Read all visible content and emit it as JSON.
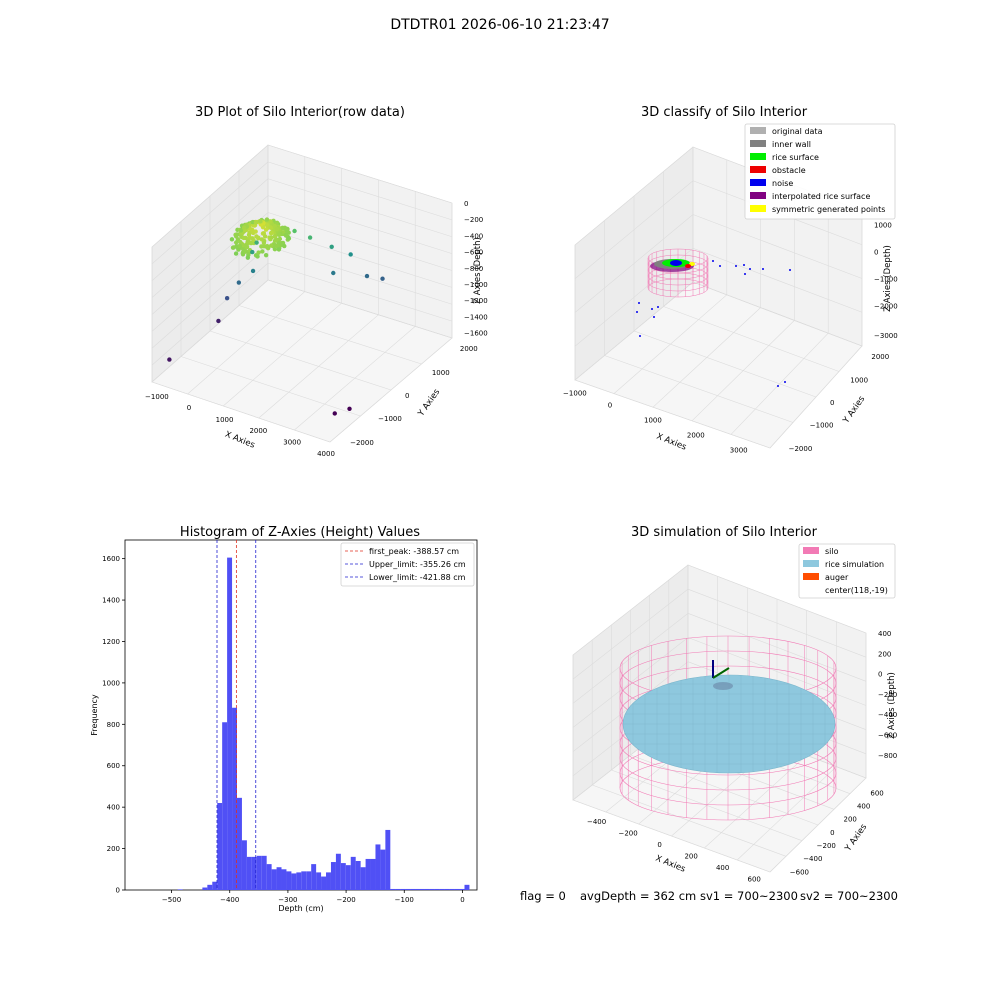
{
  "figure": {
    "title": "DTDTR01 2026-06-10 21:23:47",
    "status": {
      "flag": "flag = 0",
      "avg_depth": "avgDepth = 362 cm",
      "sv1": "sv1 = 700~2300",
      "sv2": "sv2 = 700~2300"
    }
  },
  "colors": {
    "hist_bar": "#5050f5",
    "peak_line": "#e03020",
    "limit_line": "#2020d0",
    "silo_wire": "#f27ab5",
    "rice_fill": "#8ec8de",
    "auger": "#ff4d00",
    "original": "#b0b0b0",
    "inner_wall": "#808080",
    "rice_surface": "#00ee00",
    "obstacle": "#ee0000",
    "noise": "#0000ee",
    "interpolated": "#800080",
    "symmetric": "#ffff00"
  },
  "chart_data": [
    {
      "type": "scatter3d",
      "title": "3D Plot of Silo Interior(row data)",
      "xlabel": "X Axies",
      "ylabel": "Y Axies",
      "zlabel": "Z Axies (Depth)",
      "x_ticks": [
        "−1000",
        "0",
        "1000",
        "2000",
        "3000",
        "4000"
      ],
      "y_ticks": [
        "−2000",
        "−1000",
        "0",
        "1000",
        "2000"
      ],
      "z_ticks": [
        "0",
        "−200",
        "−400",
        "−600",
        "−800",
        "−1000",
        "−1200",
        "−1400",
        "−1600"
      ],
      "points": [
        {
          "x": 150,
          "y": 150,
          "z": -350,
          "n": 220
        },
        {
          "x": -300,
          "y": 600,
          "z": -600
        },
        {
          "x": -350,
          "y": 500,
          "z": -700
        },
        {
          "x": -250,
          "y": 400,
          "z": -900
        },
        {
          "x": -550,
          "y": 250,
          "z": -1050
        },
        {
          "x": -700,
          "y": 0,
          "z": -1200
        },
        {
          "x": -800,
          "y": -200,
          "z": -1450
        },
        {
          "x": 500,
          "y": 1000,
          "z": -450
        },
        {
          "x": 800,
          "y": 1200,
          "z": -550
        },
        {
          "x": 1200,
          "y": 1500,
          "z": -700
        },
        {
          "x": 1600,
          "y": 1700,
          "z": -800
        },
        {
          "x": 1400,
          "y": 1300,
          "z": -950
        },
        {
          "x": 2000,
          "y": 1800,
          "z": -1050
        },
        {
          "x": 2300,
          "y": 2000,
          "z": -1100
        },
        {
          "x": -1000,
          "y": -1800,
          "z": -1500
        },
        {
          "x": 3600,
          "y": -1500,
          "z": -1600
        },
        {
          "x": 3800,
          "y": -1200,
          "z": -1600
        }
      ]
    },
    {
      "type": "scatter3d",
      "title": "3D classify of Silo Interior",
      "xlabel": "X Axies",
      "ylabel": "Y Axies",
      "zlabel": "Z Axies (Depth)",
      "x_ticks": [
        "−1000",
        "0",
        "1000",
        "2000",
        "3000"
      ],
      "y_ticks": [
        "−2000",
        "−1000",
        "0",
        "1000",
        "2000"
      ],
      "z_ticks": [
        "1000",
        "0",
        "−1000",
        "−2000",
        "−3000"
      ],
      "legend": [
        {
          "label": "original data",
          "color": "#b0b0b0"
        },
        {
          "label": "inner wall",
          "color": "#808080"
        },
        {
          "label": "rice surface",
          "color": "#00ee00"
        },
        {
          "label": "obstacle",
          "color": "#ee0000"
        },
        {
          "label": "noise",
          "color": "#0000ee"
        },
        {
          "label": "interpolated rice surface",
          "color": "#800080"
        },
        {
          "label": "symmetric generated points",
          "color": "#ffff00"
        }
      ]
    },
    {
      "type": "bar",
      "title": "Histogram of Z-Axies (Height) Values",
      "xlabel": "Depth (cm)",
      "ylabel": "Frequency",
      "xlim": [
        -580,
        25
      ],
      "ylim": [
        0,
        1690
      ],
      "x_ticks": [
        -500,
        -400,
        -300,
        -200,
        -100,
        0
      ],
      "y_ticks": [
        0,
        200,
        400,
        600,
        800,
        1000,
        1200,
        1400,
        1600
      ],
      "bin_width": 8.5,
      "bins": [
        {
          "x": -489.5,
          "value": 3
        },
        {
          "x": -447,
          "value": 12
        },
        {
          "x": -438.5,
          "value": 25
        },
        {
          "x": -430,
          "value": 40
        },
        {
          "x": -421.5,
          "value": 420
        },
        {
          "x": -413,
          "value": 810
        },
        {
          "x": -404.5,
          "value": 1605
        },
        {
          "x": -396,
          "value": 880
        },
        {
          "x": -387.5,
          "value": 445
        },
        {
          "x": -379,
          "value": 240
        },
        {
          "x": -370.5,
          "value": 160
        },
        {
          "x": -362,
          "value": 160
        },
        {
          "x": -353.5,
          "value": 165
        },
        {
          "x": -345,
          "value": 165
        },
        {
          "x": -336.5,
          "value": 125
        },
        {
          "x": -328,
          "value": 100
        },
        {
          "x": -319.5,
          "value": 110
        },
        {
          "x": -311,
          "value": 100
        },
        {
          "x": -302.5,
          "value": 90
        },
        {
          "x": -294,
          "value": 80
        },
        {
          "x": -285.5,
          "value": 85
        },
        {
          "x": -277,
          "value": 90
        },
        {
          "x": -268.5,
          "value": 90
        },
        {
          "x": -260,
          "value": 125
        },
        {
          "x": -251.5,
          "value": 85
        },
        {
          "x": -243,
          "value": 65
        },
        {
          "x": -234.5,
          "value": 85
        },
        {
          "x": -226,
          "value": 135
        },
        {
          "x": -217.5,
          "value": 175
        },
        {
          "x": -209,
          "value": 130
        },
        {
          "x": -200.5,
          "value": 120
        },
        {
          "x": -192,
          "value": 160
        },
        {
          "x": -183.5,
          "value": 140
        },
        {
          "x": -175,
          "value": 110
        },
        {
          "x": -166.5,
          "value": 150
        },
        {
          "x": -158,
          "value": 150
        },
        {
          "x": -149.5,
          "value": 220
        },
        {
          "x": -141,
          "value": 195
        },
        {
          "x": -132.5,
          "value": 290
        },
        {
          "x": -124,
          "value": 5
        },
        {
          "x": -115.5,
          "value": 5
        },
        {
          "x": -107,
          "value": 5
        },
        {
          "x": -98.5,
          "value": 5
        },
        {
          "x": -90,
          "value": 5
        },
        {
          "x": -81.5,
          "value": 5
        },
        {
          "x": -73,
          "value": 5
        },
        {
          "x": -64.5,
          "value": 5
        },
        {
          "x": -56,
          "value": 5
        },
        {
          "x": -47.5,
          "value": 5
        },
        {
          "x": -39,
          "value": 5
        },
        {
          "x": -30.5,
          "value": 5
        },
        {
          "x": -22,
          "value": 5
        },
        {
          "x": -13.5,
          "value": 5
        },
        {
          "x": -5,
          "value": 5
        },
        {
          "x": 3.5,
          "value": 25
        }
      ],
      "vlines": [
        {
          "x": -388.57,
          "label": "first_peak: -388.57 cm",
          "color": "#e03020"
        },
        {
          "x": -355.26,
          "label": "Upper_limit: -355.26 cm",
          "color": "#2020d0"
        },
        {
          "x": -421.88,
          "label": "Lower_limit: -421.88 cm",
          "color": "#2020d0"
        }
      ]
    },
    {
      "type": "surface3d",
      "title": "3D simulation of Silo Interior",
      "xlabel": "X Axies",
      "ylabel": "Y Axies",
      "zlabel": "Z Axies (Depth)",
      "x_ticks": [
        "−400",
        "−200",
        "0",
        "200",
        "400",
        "600"
      ],
      "y_ticks": [
        "−600",
        "−400",
        "−200",
        "0",
        "200",
        "400",
        "600"
      ],
      "z_ticks": [
        "400",
        "200",
        "0",
        "−200",
        "−400",
        "−600",
        "−800"
      ],
      "legend": [
        {
          "label": "silo",
          "color": "#f27ab5"
        },
        {
          "label": "rice simulation",
          "color": "#8ec8de"
        },
        {
          "label": "auger",
          "color": "#ff4d00"
        },
        {
          "label": "center(118,-19)",
          "color": ""
        }
      ]
    }
  ]
}
